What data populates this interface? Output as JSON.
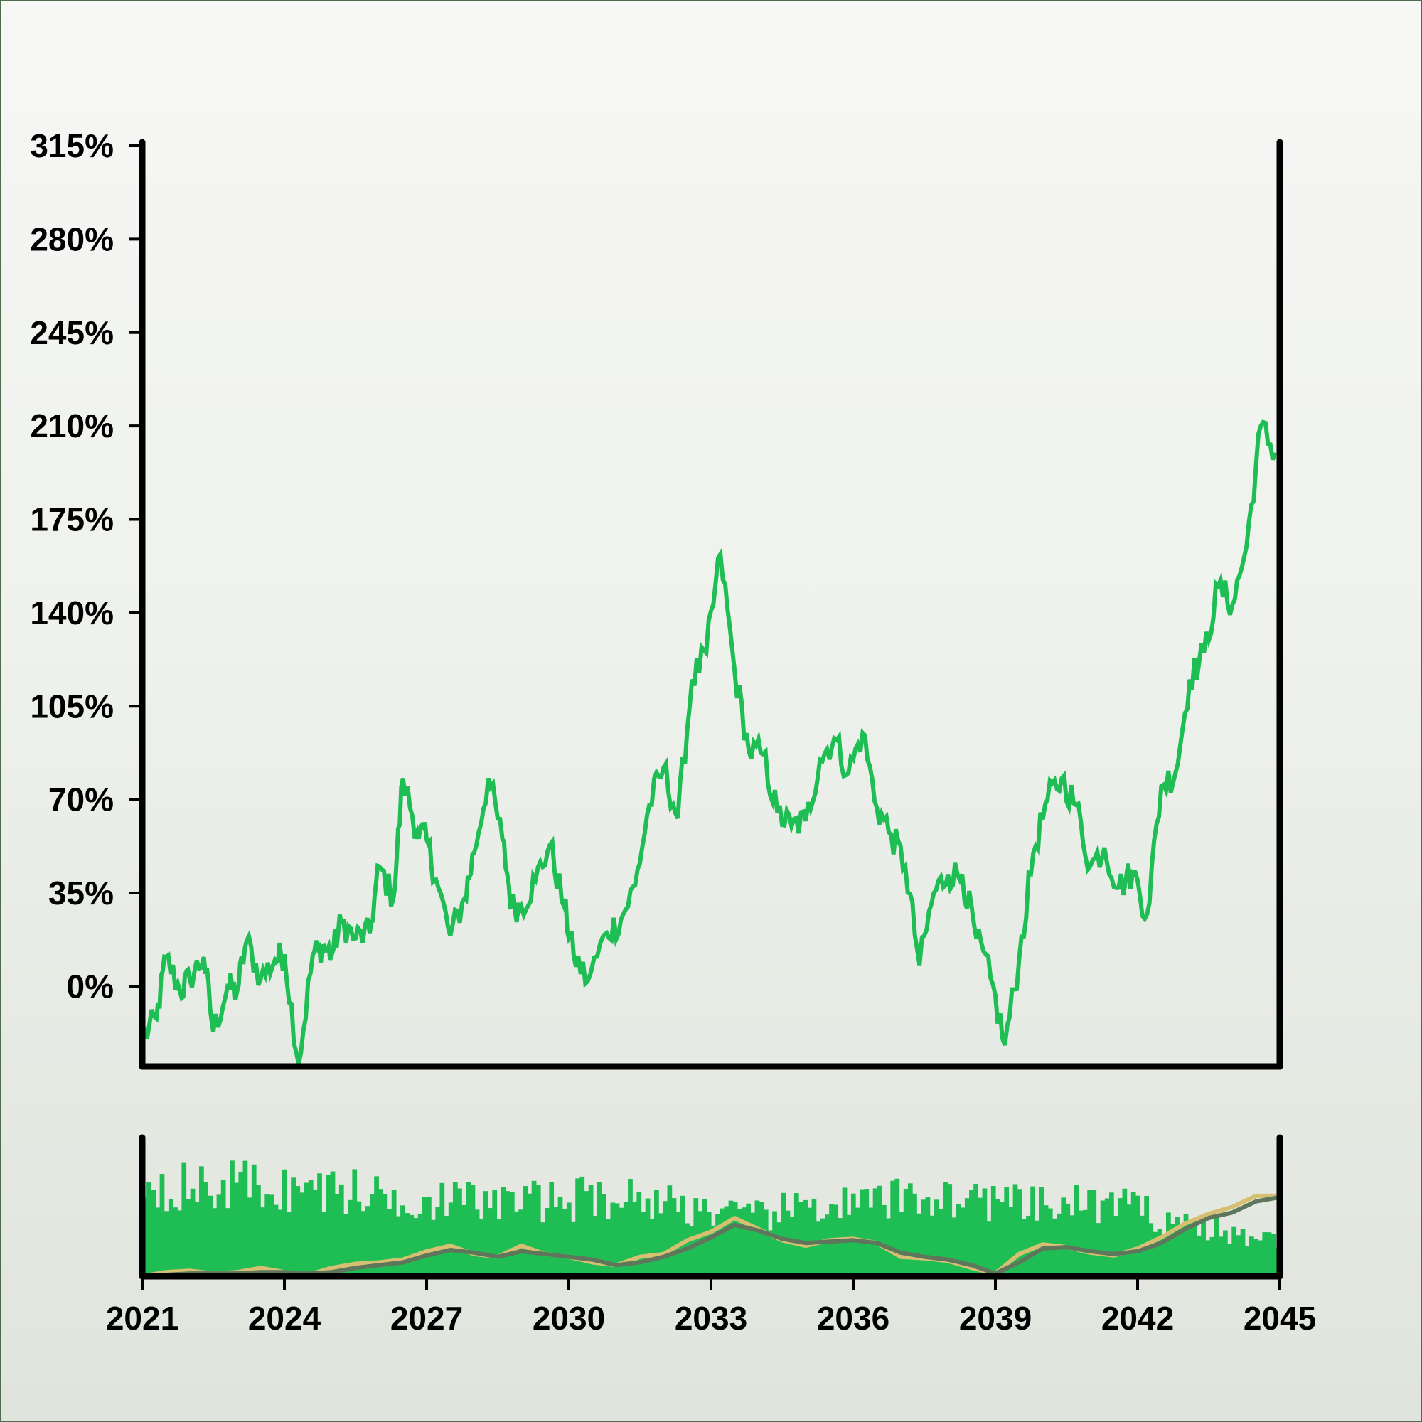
{
  "chart_data": [
    {
      "type": "line",
      "panel": "price",
      "title": "",
      "xlabel": "",
      "ylabel": "",
      "ylim": [
        -30,
        315
      ],
      "xlim": [
        2021,
        2045
      ],
      "y_ticks": [
        0,
        35,
        70,
        105,
        140,
        175,
        210,
        245,
        280,
        315
      ],
      "y_tick_labels": [
        "0%",
        "35%",
        "70%",
        "105%",
        "140%",
        "175%",
        "210%",
        "245%",
        "280%",
        "315%"
      ],
      "grid": false,
      "colors": {
        "line": "#1fbe55"
      },
      "series": [
        {
          "x": [
            2021.0,
            2021.3,
            2021.5,
            2021.8,
            2022.0,
            2022.3,
            2022.5,
            2022.8,
            2023.0,
            2023.2,
            2023.5,
            2023.8,
            2024.0,
            2024.3,
            2024.6,
            2024.8,
            2025.0,
            2025.2,
            2025.5,
            2025.8,
            2026.0,
            2026.3,
            2026.5,
            2026.8,
            2027.0,
            2027.2,
            2027.5,
            2027.8,
            2028.0,
            2028.3,
            2028.6,
            2028.8,
            2029.0,
            2029.3,
            2029.6,
            2029.9,
            2030.1,
            2030.4,
            2030.8,
            2031.1,
            2031.4,
            2031.7,
            2032.0,
            2032.3,
            2032.6,
            2032.9,
            2033.2,
            2033.5,
            2033.8,
            2034.1,
            2034.4,
            2034.7,
            2035.0,
            2035.3,
            2035.6,
            2035.9,
            2036.2,
            2036.5,
            2036.8,
            2037.1,
            2037.4,
            2037.7,
            2038.0,
            2038.3,
            2038.6,
            2038.9,
            2039.2,
            2039.5,
            2039.8,
            2040.1,
            2040.4,
            2040.7,
            2041.0,
            2041.3,
            2041.6,
            2041.9,
            2042.2,
            2042.5,
            2042.8,
            2043.1,
            2043.4,
            2043.7,
            2044.0,
            2044.3,
            2044.6,
            2044.9
          ],
          "y": [
            -20,
            -12,
            11,
            -2,
            3,
            11,
            -17,
            0,
            -2,
            17,
            3,
            10,
            12,
            -29,
            12,
            15,
            12,
            24,
            18,
            20,
            45,
            33,
            78,
            58,
            55,
            40,
            19,
            33,
            50,
            78,
            55,
            30,
            30,
            40,
            53,
            30,
            12,
            2,
            20,
            25,
            38,
            68,
            82,
            63,
            115,
            125,
            162,
            118,
            88,
            87,
            65,
            60,
            62,
            85,
            93,
            80,
            95,
            67,
            57,
            45,
            8,
            35,
            42,
            42,
            18,
            3,
            -22,
            10,
            50,
            70,
            78,
            68,
            45,
            52,
            37,
            43,
            27,
            75,
            80,
            115,
            125,
            150,
            143,
            165,
            210,
            200
          ]
        }
      ]
    },
    {
      "type": "bar",
      "panel": "volume",
      "title": "",
      "xlabel": "",
      "ylabel": "",
      "xlim": [
        2021,
        2045
      ],
      "x_ticks": [
        2021,
        2024,
        2027,
        2030,
        2033,
        2036,
        2039,
        2042,
        2045
      ],
      "x_tick_labels": [
        "2021",
        "2024",
        "2027",
        "2030",
        "2033",
        "2036",
        "2039",
        "2042",
        "2045"
      ],
      "grid": false,
      "colors": {
        "bars": "#1fbe55",
        "overlay_fast": "#d7bf72",
        "overlay_slow": "#5e765c"
      },
      "bar_levels": [
        {
          "x": 2021.0,
          "v": 0.9
        },
        {
          "x": 2021.5,
          "v": 0.85
        },
        {
          "x": 2022.0,
          "v": 0.82
        },
        {
          "x": 2022.5,
          "v": 0.8
        },
        {
          "x": 2023.0,
          "v": 0.88
        },
        {
          "x": 2023.5,
          "v": 0.83
        },
        {
          "x": 2024.0,
          "v": 0.8
        },
        {
          "x": 2024.5,
          "v": 0.82
        },
        {
          "x": 2025.0,
          "v": 0.8
        },
        {
          "x": 2025.5,
          "v": 0.78
        },
        {
          "x": 2026.0,
          "v": 0.75
        },
        {
          "x": 2026.5,
          "v": 0.72
        },
        {
          "x": 2027.0,
          "v": 0.72
        },
        {
          "x": 2027.5,
          "v": 0.7
        },
        {
          "x": 2028.0,
          "v": 0.7
        },
        {
          "x": 2028.5,
          "v": 0.68
        },
        {
          "x": 2029.0,
          "v": 0.7
        },
        {
          "x": 2029.5,
          "v": 0.7
        },
        {
          "x": 2030.0,
          "v": 0.7
        },
        {
          "x": 2030.5,
          "v": 0.75
        },
        {
          "x": 2031.0,
          "v": 0.74
        },
        {
          "x": 2031.5,
          "v": 0.72
        },
        {
          "x": 2032.0,
          "v": 0.7
        },
        {
          "x": 2032.5,
          "v": 0.65
        },
        {
          "x": 2033.0,
          "v": 0.62
        },
        {
          "x": 2033.5,
          "v": 0.55
        },
        {
          "x": 2034.0,
          "v": 0.55
        },
        {
          "x": 2034.5,
          "v": 0.6
        },
        {
          "x": 2035.0,
          "v": 0.65
        },
        {
          "x": 2035.5,
          "v": 0.68
        },
        {
          "x": 2036.0,
          "v": 0.65
        },
        {
          "x": 2036.5,
          "v": 0.68
        },
        {
          "x": 2037.0,
          "v": 0.72
        },
        {
          "x": 2037.5,
          "v": 0.75
        },
        {
          "x": 2038.0,
          "v": 0.73
        },
        {
          "x": 2038.5,
          "v": 0.72
        },
        {
          "x": 2039.0,
          "v": 0.7
        },
        {
          "x": 2039.5,
          "v": 0.66
        },
        {
          "x": 2040.0,
          "v": 0.64
        },
        {
          "x": 2040.5,
          "v": 0.66
        },
        {
          "x": 2041.0,
          "v": 0.68
        },
        {
          "x": 2041.5,
          "v": 0.66
        },
        {
          "x": 2042.0,
          "v": 0.62
        },
        {
          "x": 2042.5,
          "v": 0.55
        },
        {
          "x": 2043.0,
          "v": 0.5
        },
        {
          "x": 2043.5,
          "v": 0.45
        },
        {
          "x": 2044.0,
          "v": 0.38
        },
        {
          "x": 2044.5,
          "v": 0.35
        },
        {
          "x": 2045.0,
          "v": 0.33
        }
      ],
      "overlays": [
        {
          "x": [
            2021,
            2021.5,
            2022,
            2022.5,
            2023,
            2023.5,
            2024,
            2024.5,
            2025,
            2025.5,
            2026,
            2026.5,
            2027,
            2027.5,
            2028,
            2028.5,
            2029,
            2029.5,
            2030,
            2030.5,
            2031,
            2031.5,
            2032,
            2032.5,
            2033,
            2033.5,
            2034,
            2034.5,
            2035,
            2035.5,
            2036,
            2036.5,
            2037,
            2037.5,
            2038,
            2038.5,
            2039,
            2039.5,
            2040,
            2040.5,
            2041,
            2041.5,
            2042,
            2042.5,
            2043,
            2043.5,
            2044,
            2044.5,
            2045
          ],
          "y": [
            0.0,
            0.03,
            0.04,
            0.02,
            0.03,
            0.06,
            0.03,
            0.01,
            0.06,
            0.09,
            0.1,
            0.12,
            0.18,
            0.22,
            0.16,
            0.14,
            0.22,
            0.16,
            0.14,
            0.1,
            0.08,
            0.14,
            0.16,
            0.26,
            0.32,
            0.42,
            0.34,
            0.26,
            0.22,
            0.26,
            0.27,
            0.24,
            0.14,
            0.13,
            0.11,
            0.06,
            0.02,
            0.16,
            0.23,
            0.21,
            0.17,
            0.15,
            0.2,
            0.28,
            0.38,
            0.45,
            0.5,
            0.58,
            0.58
          ]
        },
        {
          "x": [
            2021,
            2021.5,
            2022,
            2022.5,
            2023,
            2023.5,
            2024,
            2024.5,
            2025,
            2025.5,
            2026,
            2026.5,
            2027,
            2027.5,
            2028,
            2028.5,
            2029,
            2029.5,
            2030,
            2030.5,
            2031,
            2031.5,
            2032,
            2032.5,
            2033,
            2033.5,
            2034,
            2034.5,
            2035,
            2035.5,
            2036,
            2036.5,
            2037,
            2037.5,
            2038,
            2038.5,
            2039,
            2039.5,
            2040,
            2040.5,
            2041,
            2041.5,
            2042,
            2042.5,
            2043,
            2043.5,
            2044,
            2044.5,
            2045
          ],
          "y": [
            0.0,
            0.01,
            0.02,
            0.02,
            0.02,
            0.03,
            0.03,
            0.02,
            0.03,
            0.06,
            0.08,
            0.1,
            0.15,
            0.19,
            0.17,
            0.14,
            0.18,
            0.16,
            0.14,
            0.12,
            0.08,
            0.1,
            0.14,
            0.2,
            0.28,
            0.37,
            0.33,
            0.27,
            0.24,
            0.25,
            0.26,
            0.24,
            0.17,
            0.14,
            0.12,
            0.08,
            0.02,
            0.1,
            0.2,
            0.21,
            0.18,
            0.16,
            0.18,
            0.24,
            0.34,
            0.42,
            0.46,
            0.54,
            0.57
          ]
        }
      ]
    }
  ]
}
